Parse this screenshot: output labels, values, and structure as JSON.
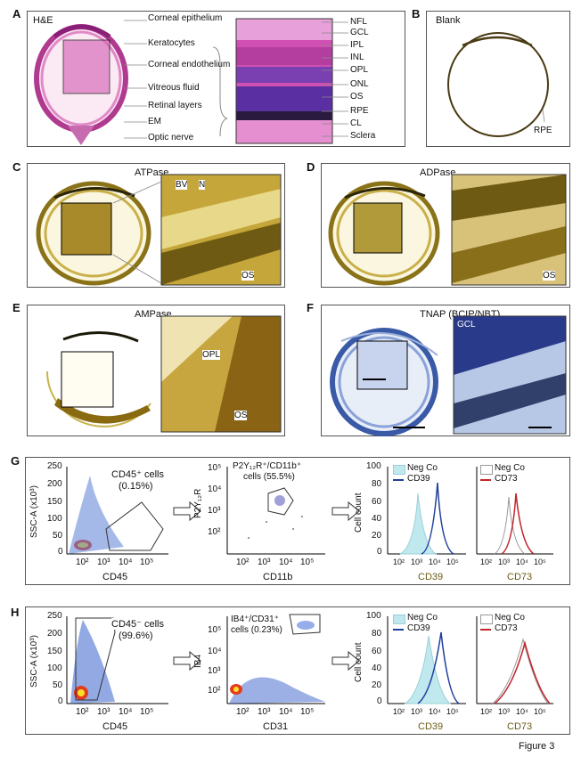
{
  "figure_label": "Figure 3",
  "panels": {
    "A": {
      "letter": "A",
      "title": "H&E",
      "left_labels": [
        "Corneal epithelium",
        "Keratocytes",
        "Corneal endothelium",
        "Vitreous fluid",
        "Retinal layers",
        "EM",
        "Optic nerve"
      ],
      "right_labels": [
        "NFL",
        "GCL",
        "IPL",
        "INL",
        "OPL",
        "ONL",
        "OS",
        "RPE",
        "CL",
        "Sclera"
      ]
    },
    "B": {
      "letter": "B",
      "title": "Blank",
      "label": "RPE"
    },
    "C": {
      "letter": "C",
      "title": "ATPase",
      "labels": [
        "BV",
        "N",
        "OS"
      ]
    },
    "D": {
      "letter": "D",
      "title": "ADPase",
      "labels": [
        "OS"
      ]
    },
    "E": {
      "letter": "E",
      "title": "AMPase",
      "labels": [
        "OPL",
        "OS"
      ]
    },
    "F": {
      "letter": "F",
      "title": "TNAP (BCIP/NBT)",
      "labels": [
        "GCL"
      ]
    },
    "G": {
      "letter": "G",
      "plot1": {
        "ylabel": "SSC-A (x10³)",
        "xlabel": "CD45",
        "gate": "CD45⁺ cells",
        "gate_pct": "(0.15%)",
        "yticks": [
          "0",
          "50",
          "100",
          "150",
          "200",
          "250"
        ]
      },
      "plot2": {
        "ylabel": "P2Y₁₂R",
        "xlabel": "CD11b",
        "gate": "P2Y₁₂R⁺/CD11b⁺",
        "gate_pct": "cells (55.5%)"
      },
      "hist1": {
        "ylabel": "Cell count",
        "xlabel": "CD39",
        "legend": [
          "Neg Co",
          "CD39"
        ],
        "yticks": [
          "0",
          "20",
          "40",
          "60",
          "80",
          "100"
        ]
      },
      "hist2": {
        "xlabel": "CD73",
        "legend": [
          "Neg Co",
          "CD73"
        ]
      }
    },
    "H": {
      "letter": "H",
      "plot1": {
        "ylabel": "SSC-A (x10³)",
        "xlabel": "CD45",
        "gate": "CD45⁻ cells",
        "gate_pct": "(99.6%)",
        "yticks": [
          "0",
          "50",
          "100",
          "150",
          "200",
          "250"
        ]
      },
      "plot2": {
        "ylabel": "IB4",
        "xlabel": "CD31",
        "gate": "IB4⁺/CD31⁺",
        "gate_pct": "cells (0.23%)"
      },
      "hist1": {
        "ylabel": "Cell count",
        "xlabel": "CD39",
        "legend": [
          "Neg Co",
          "CD39"
        ],
        "yticks": [
          "0",
          "20",
          "40",
          "60",
          "80",
          "100"
        ]
      },
      "hist2": {
        "xlabel": "CD73",
        "legend": [
          "Neg Co",
          "CD73"
        ]
      }
    }
  },
  "log_ticks_x": [
    "10²",
    "10³",
    "10⁴",
    "10⁵"
  ],
  "log_ticks_y": [
    "10²",
    "10³",
    "10⁴",
    "10⁵"
  ],
  "colors": {
    "neg_fill": "#bfe9ee",
    "cd39": "#1f3f9e",
    "cd73": "#c0262b",
    "he": "#c24aa8",
    "atp": "#a88a1a",
    "tnap": "#2a4a9a"
  }
}
